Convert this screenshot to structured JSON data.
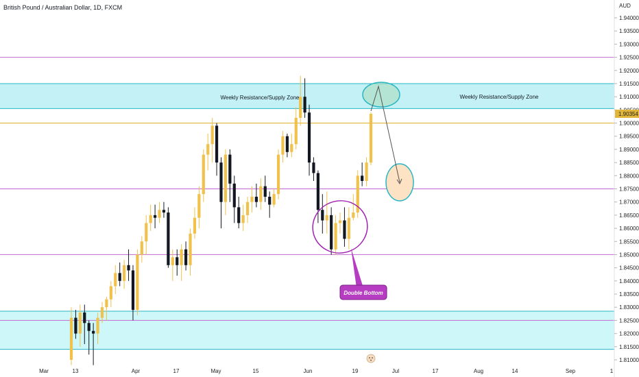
{
  "chart_data": {
    "type": "candlestick",
    "title": "British Pound / Australian Dollar, 1D, FXCM",
    "currency": "AUD",
    "last_price": "1.90354",
    "last_value": 1.90354,
    "ylim": [
      1.805,
      1.945
    ],
    "y_ticks": [
      "1.94000",
      "1.93500",
      "1.93000",
      "1.92500",
      "1.92000",
      "1.91500",
      "1.91000",
      "1.90500",
      "1.90000",
      "1.89500",
      "1.89000",
      "1.88500",
      "1.88000",
      "1.87500",
      "1.87000",
      "1.86500",
      "1.86000",
      "1.85500",
      "1.85000",
      "1.84500",
      "1.84000",
      "1.83500",
      "1.83000",
      "1.82500",
      "1.82000",
      "1.81500",
      "1.81000"
    ],
    "x_ticks": [
      "Mar",
      "13",
      "Apr",
      "17",
      "May",
      "15",
      "Jun",
      "19",
      "Jul",
      "17",
      "Aug",
      "14",
      "Sep",
      "1"
    ],
    "candles": [
      {
        "o": 1.81,
        "h": 1.83,
        "l": 1.808,
        "c": 1.826
      },
      {
        "o": 1.826,
        "h": 1.829,
        "l": 1.818,
        "c": 1.82
      },
      {
        "o": 1.82,
        "h": 1.831,
        "l": 1.815,
        "c": 1.828
      },
      {
        "o": 1.828,
        "h": 1.831,
        "l": 1.816,
        "c": 1.824
      },
      {
        "o": 1.824,
        "h": 1.825,
        "l": 1.812,
        "c": 1.821
      },
      {
        "o": 1.821,
        "h": 1.824,
        "l": 1.808,
        "c": 1.82
      },
      {
        "o": 1.82,
        "h": 1.828,
        "l": 1.816,
        "c": 1.826
      },
      {
        "o": 1.826,
        "h": 1.832,
        "l": 1.824,
        "c": 1.83
      },
      {
        "o": 1.83,
        "h": 1.834,
        "l": 1.825,
        "c": 1.833
      },
      {
        "o": 1.833,
        "h": 1.84,
        "l": 1.83,
        "c": 1.838
      },
      {
        "o": 1.838,
        "h": 1.846,
        "l": 1.835,
        "c": 1.843
      },
      {
        "o": 1.843,
        "h": 1.847,
        "l": 1.838,
        "c": 1.84
      },
      {
        "o": 1.84,
        "h": 1.848,
        "l": 1.837,
        "c": 1.846
      },
      {
        "o": 1.846,
        "h": 1.852,
        "l": 1.84,
        "c": 1.844
      },
      {
        "o": 1.844,
        "h": 1.846,
        "l": 1.825,
        "c": 1.829
      },
      {
        "o": 1.829,
        "h": 1.852,
        "l": 1.827,
        "c": 1.85
      },
      {
        "o": 1.85,
        "h": 1.857,
        "l": 1.847,
        "c": 1.855
      },
      {
        "o": 1.855,
        "h": 1.865,
        "l": 1.85,
        "c": 1.862
      },
      {
        "o": 1.862,
        "h": 1.869,
        "l": 1.859,
        "c": 1.865
      },
      {
        "o": 1.865,
        "h": 1.869,
        "l": 1.86,
        "c": 1.864
      },
      {
        "o": 1.864,
        "h": 1.87,
        "l": 1.862,
        "c": 1.867
      },
      {
        "o": 1.867,
        "h": 1.87,
        "l": 1.864,
        "c": 1.866
      },
      {
        "o": 1.866,
        "h": 1.868,
        "l": 1.845,
        "c": 1.846
      },
      {
        "o": 1.846,
        "h": 1.852,
        "l": 1.84,
        "c": 1.849
      },
      {
        "o": 1.849,
        "h": 1.852,
        "l": 1.842,
        "c": 1.846
      },
      {
        "o": 1.846,
        "h": 1.854,
        "l": 1.84,
        "c": 1.852
      },
      {
        "o": 1.852,
        "h": 1.855,
        "l": 1.844,
        "c": 1.846
      },
      {
        "o": 1.846,
        "h": 1.86,
        "l": 1.842,
        "c": 1.858
      },
      {
        "o": 1.858,
        "h": 1.868,
        "l": 1.856,
        "c": 1.864
      },
      {
        "o": 1.864,
        "h": 1.876,
        "l": 1.86,
        "c": 1.873
      },
      {
        "o": 1.873,
        "h": 1.89,
        "l": 1.87,
        "c": 1.888
      },
      {
        "o": 1.888,
        "h": 1.896,
        "l": 1.882,
        "c": 1.892
      },
      {
        "o": 1.892,
        "h": 1.902,
        "l": 1.885,
        "c": 1.899
      },
      {
        "o": 1.899,
        "h": 1.9,
        "l": 1.88,
        "c": 1.885
      },
      {
        "o": 1.885,
        "h": 1.887,
        "l": 1.86,
        "c": 1.87
      },
      {
        "o": 1.87,
        "h": 1.89,
        "l": 1.865,
        "c": 1.888
      },
      {
        "o": 1.888,
        "h": 1.89,
        "l": 1.87,
        "c": 1.877
      },
      {
        "o": 1.877,
        "h": 1.88,
        "l": 1.862,
        "c": 1.868
      },
      {
        "o": 1.868,
        "h": 1.872,
        "l": 1.86,
        "c": 1.862
      },
      {
        "o": 1.862,
        "h": 1.869,
        "l": 1.859,
        "c": 1.865
      },
      {
        "o": 1.865,
        "h": 1.872,
        "l": 1.862,
        "c": 1.87
      },
      {
        "o": 1.87,
        "h": 1.876,
        "l": 1.866,
        "c": 1.872
      },
      {
        "o": 1.872,
        "h": 1.877,
        "l": 1.868,
        "c": 1.87
      },
      {
        "o": 1.87,
        "h": 1.879,
        "l": 1.867,
        "c": 1.876
      },
      {
        "o": 1.876,
        "h": 1.88,
        "l": 1.87,
        "c": 1.872
      },
      {
        "o": 1.872,
        "h": 1.874,
        "l": 1.864,
        "c": 1.869
      },
      {
        "o": 1.869,
        "h": 1.875,
        "l": 1.868,
        "c": 1.873
      },
      {
        "o": 1.873,
        "h": 1.89,
        "l": 1.871,
        "c": 1.888
      },
      {
        "o": 1.888,
        "h": 1.897,
        "l": 1.885,
        "c": 1.895
      },
      {
        "o": 1.895,
        "h": 1.896,
        "l": 1.887,
        "c": 1.889
      },
      {
        "o": 1.889,
        "h": 1.896,
        "l": 1.887,
        "c": 1.892
      },
      {
        "o": 1.892,
        "h": 1.906,
        "l": 1.89,
        "c": 1.902
      },
      {
        "o": 1.902,
        "h": 1.918,
        "l": 1.899,
        "c": 1.91
      },
      {
        "o": 1.91,
        "h": 1.917,
        "l": 1.902,
        "c": 1.904
      },
      {
        "o": 1.904,
        "h": 1.907,
        "l": 1.88,
        "c": 1.885
      },
      {
        "o": 1.885,
        "h": 1.887,
        "l": 1.878,
        "c": 1.881
      },
      {
        "o": 1.881,
        "h": 1.882,
        "l": 1.862,
        "c": 1.867
      },
      {
        "o": 1.867,
        "h": 1.873,
        "l": 1.858,
        "c": 1.863
      },
      {
        "o": 1.863,
        "h": 1.874,
        "l": 1.858,
        "c": 1.865
      },
      {
        "o": 1.865,
        "h": 1.868,
        "l": 1.85,
        "c": 1.852
      },
      {
        "o": 1.852,
        "h": 1.865,
        "l": 1.85,
        "c": 1.862
      },
      {
        "o": 1.862,
        "h": 1.866,
        "l": 1.858,
        "c": 1.863
      },
      {
        "o": 1.863,
        "h": 1.868,
        "l": 1.853,
        "c": 1.856
      },
      {
        "o": 1.856,
        "h": 1.868,
        "l": 1.852,
        "c": 1.864
      },
      {
        "o": 1.864,
        "h": 1.873,
        "l": 1.863,
        "c": 1.866
      },
      {
        "o": 1.866,
        "h": 1.882,
        "l": 1.864,
        "c": 1.88
      },
      {
        "o": 1.88,
        "h": 1.885,
        "l": 1.876,
        "c": 1.878
      },
      {
        "o": 1.878,
        "h": 1.887,
        "l": 1.876,
        "c": 1.885
      },
      {
        "o": 1.885,
        "h": 1.904,
        "l": 1.884,
        "c": 1.9035
      }
    ],
    "horizontal_lines": [
      {
        "name": "magenta-line-upper",
        "y": 1.925,
        "color": "#c77ad6"
      },
      {
        "name": "yellow-line",
        "y": 1.9,
        "color": "#e0b53a"
      },
      {
        "name": "magenta-line-middle",
        "y": 1.875,
        "color": "#c77ad6"
      },
      {
        "name": "magenta-line-lower",
        "y": 1.85,
        "color": "#c77ad6"
      },
      {
        "name": "magenta-line-bottom",
        "y": 1.825,
        "color": "#c77ad6"
      }
    ],
    "zones": [
      {
        "name": "weekly-resistance-zone",
        "top": 1.915,
        "bottom": 1.9055,
        "color": "#b9eef3",
        "edge": "#28b5c4"
      },
      {
        "name": "support-zone",
        "top": 1.8285,
        "bottom": 1.814,
        "color": "#c6f6f8",
        "edge": "#28b5c4"
      }
    ],
    "annotations": {
      "zone_label_left": "Weekly Resistance/Supply Zone",
      "zone_label_right": "Weekly Resistance/Supply Zone",
      "pattern_label": "Double Bottom"
    },
    "colors": {
      "up": "#f0c14b",
      "down": "#131722",
      "label_bg": "#b63cc2",
      "price_tag": "#e0b53a"
    }
  }
}
